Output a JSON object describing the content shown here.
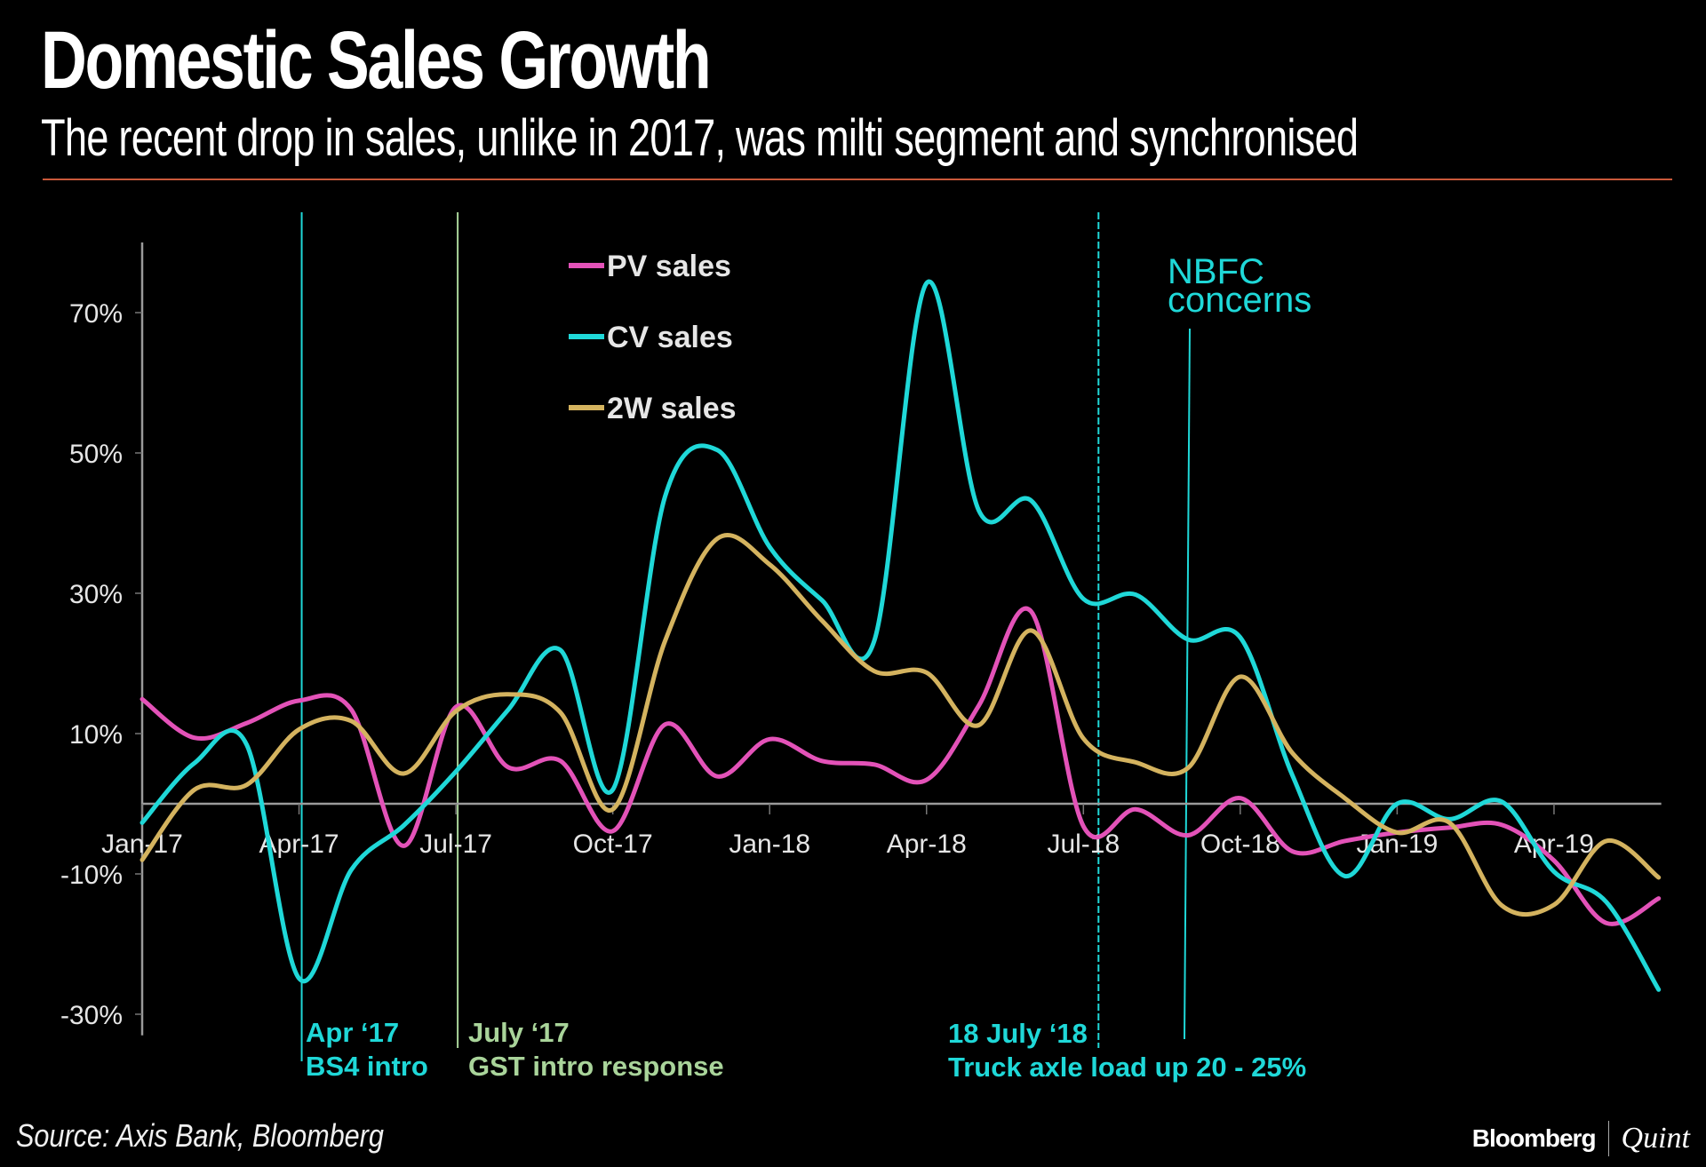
{
  "header": {
    "title": "Domestic Sales Growth",
    "subtitle": "The recent drop in sales, unlike in 2017, was milti segment and synchronised"
  },
  "footer": {
    "source": "Source: Axis Bank, Bloomberg",
    "brand_primary": "Bloomberg",
    "brand_secondary": "Quint"
  },
  "colors": {
    "pv": "#e352b8",
    "cv": "#1fd8d8",
    "w2": "#d4b35f",
    "gst_annotation": "#a9d49a",
    "rule": "#c8583a"
  },
  "annotations": [
    {
      "id": "bs4",
      "lines": [
        "Apr ‘17",
        "BS4 intro"
      ],
      "month": "Apr-17",
      "color_key": "cv"
    },
    {
      "id": "gst",
      "lines": [
        "July ‘17",
        "GST intro response"
      ],
      "month": "Jul-17",
      "color_key": "gst_annotation"
    },
    {
      "id": "axle",
      "lines": [
        "18 July ‘18",
        "Truck axle load up 20 - 25%"
      ],
      "month": "Jul-18",
      "color_key": "cv"
    },
    {
      "id": "nbfc",
      "lines": [
        "NBFC",
        "concerns"
      ],
      "month": "Sep-18",
      "color_key": "cv"
    }
  ],
  "chart_data": {
    "type": "line",
    "title": "Domestic Sales Growth",
    "subtitle": "The recent drop in sales, unlike in 2017, was milti segment and synchronised",
    "xlabel": "",
    "ylabel": "",
    "x": [
      "Jan-17",
      "Feb-17",
      "Mar-17",
      "Apr-17",
      "May-17",
      "Jun-17",
      "Jul-17",
      "Aug-17",
      "Sep-17",
      "Oct-17",
      "Nov-17",
      "Dec-17",
      "Jan-18",
      "Feb-18",
      "Mar-18",
      "Apr-18",
      "May-18",
      "Jun-18",
      "Jul-18",
      "Aug-18",
      "Sep-18",
      "Oct-18",
      "Nov-18",
      "Dec-18",
      "Jan-19",
      "Feb-19",
      "Mar-19",
      "Apr-19",
      "May-19",
      "Jun-19"
    ],
    "x_tick_labels": [
      "Jan-17",
      "Apr-17",
      "Jul-17",
      "Oct-17",
      "Jan-18",
      "Apr-18",
      "Jul-18",
      "Oct-18",
      "Jan-19",
      "Apr-19"
    ],
    "y_ticks": [
      70,
      50,
      30,
      10,
      -10,
      -30
    ],
    "y_tick_labels": [
      "70%",
      "50%",
      "30%",
      "10%",
      "-10%",
      "-30%"
    ],
    "ylim": [
      -33,
      80
    ],
    "grid": false,
    "legend_position": "top-center",
    "series": [
      {
        "key": "pv",
        "name": "PV sales",
        "values": [
          14.9,
          9.4,
          11.5,
          14.7,
          13.4,
          -6.0,
          13.8,
          5.2,
          6.1,
          -3.9,
          11.3,
          3.9,
          9.2,
          6.1,
          5.6,
          3.4,
          14.0,
          27.4,
          -3.2,
          -0.8,
          -4.5,
          0.8,
          -6.8,
          -5.3,
          -4.1,
          -3.4,
          -3.0,
          -8.1,
          -17.0,
          -13.5
        ]
      },
      {
        "key": "cv",
        "name": "CV sales",
        "values": [
          -2.7,
          5.8,
          8.4,
          -24.9,
          -9.4,
          -3.1,
          4.6,
          13.4,
          21.9,
          2.0,
          43.8,
          50.4,
          36.6,
          29.0,
          23.2,
          74.2,
          41.8,
          43.2,
          29.2,
          29.8,
          23.4,
          23.7,
          4.0,
          -10.3,
          0.0,
          -2.2,
          0.3,
          -9.7,
          -14.0,
          -26.5
        ]
      },
      {
        "key": "w2",
        "name": "2W sales",
        "values": [
          -8.0,
          2.0,
          2.7,
          10.6,
          11.8,
          4.3,
          13.2,
          15.6,
          13.0,
          -0.8,
          23.2,
          37.8,
          34.1,
          26.1,
          18.9,
          18.7,
          11.2,
          24.7,
          9.3,
          5.9,
          5.1,
          18.1,
          7.2,
          0.8,
          -4.1,
          -2.7,
          -14.5,
          -14.4,
          -5.3,
          -10.5
        ]
      }
    ]
  }
}
